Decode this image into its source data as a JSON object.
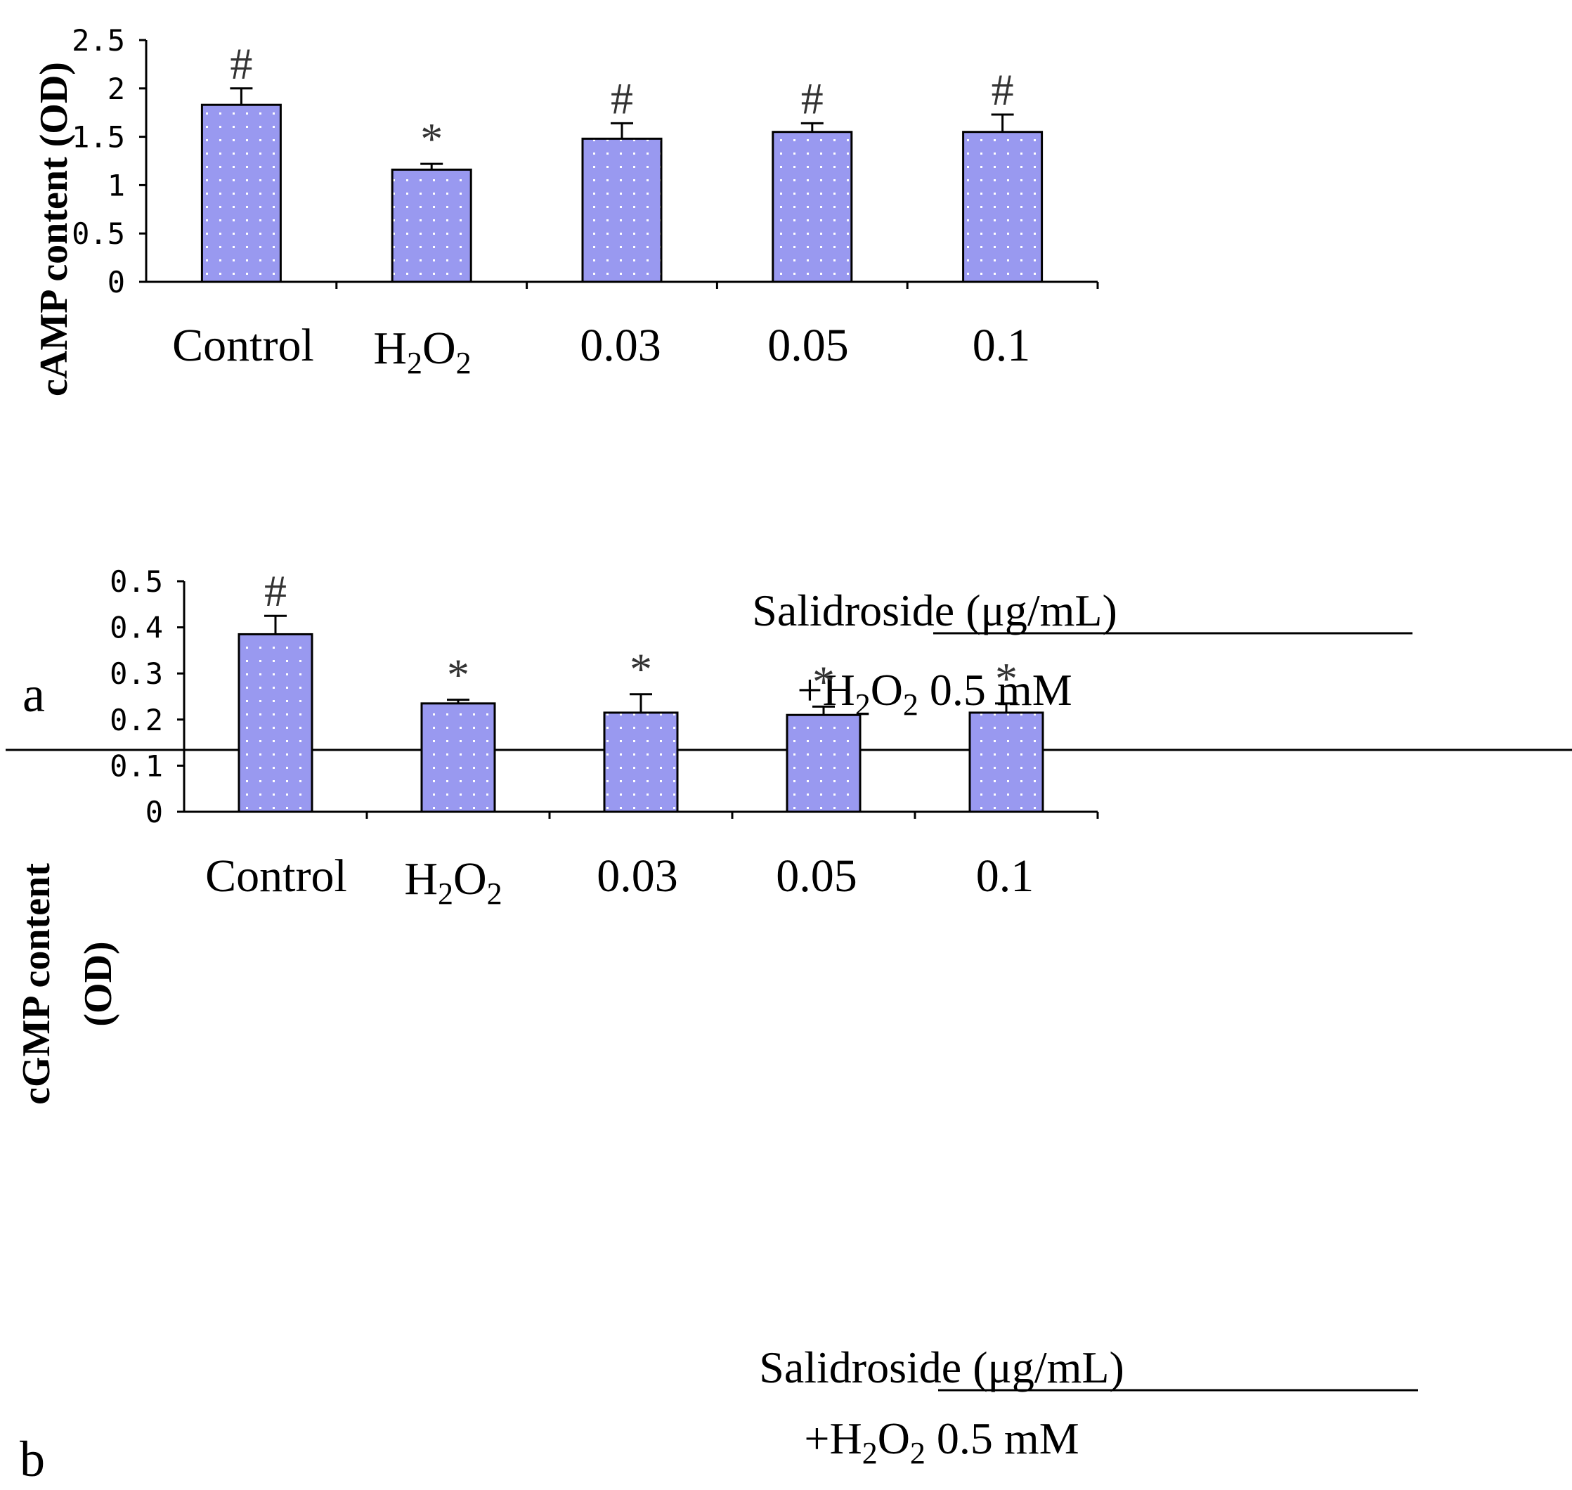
{
  "colors": {
    "bar_fill": "#9999f0",
    "bar_dots": "#ffffff",
    "axis": "#000000"
  },
  "chart_data": [
    {
      "type": "bar",
      "panel_label": "a",
      "ylabel": "cAMP content (OD)",
      "ylim": [
        0,
        2.5
      ],
      "yticks": [
        "0",
        "0.5",
        "1",
        "1.5",
        "2",
        "2.5"
      ],
      "categories": [
        "Control",
        "H2O2",
        "0.03",
        "0.05",
        "0.1"
      ],
      "values": [
        1.83,
        1.16,
        1.48,
        1.55,
        1.55
      ],
      "errors": [
        0.17,
        0.06,
        0.16,
        0.09,
        0.18
      ],
      "annotations": [
        "#",
        "*",
        "#",
        "#",
        "#"
      ],
      "group_label": "Salidroside (μg/mL)",
      "group_sublabel": "+H2O2 0.5 mM"
    },
    {
      "type": "bar",
      "panel_label": "b",
      "ylabel_line1": "cGMP content",
      "ylabel_line2": "(OD)",
      "ylim": [
        0,
        0.5
      ],
      "yticks": [
        "0",
        "0.1",
        "0.2",
        "0.3",
        "0.4",
        "0.5"
      ],
      "categories": [
        "Control",
        "H2O2",
        "0.03",
        "0.05",
        "0.1"
      ],
      "values": [
        0.385,
        0.235,
        0.215,
        0.21,
        0.215
      ],
      "errors": [
        0.04,
        0.008,
        0.04,
        0.018,
        0.02
      ],
      "annotations": [
        "#",
        "*",
        "*",
        "*",
        "*"
      ],
      "group_label": "Salidroside (μg/mL)",
      "group_sublabel": "+H2O2 0.5 mM"
    }
  ]
}
